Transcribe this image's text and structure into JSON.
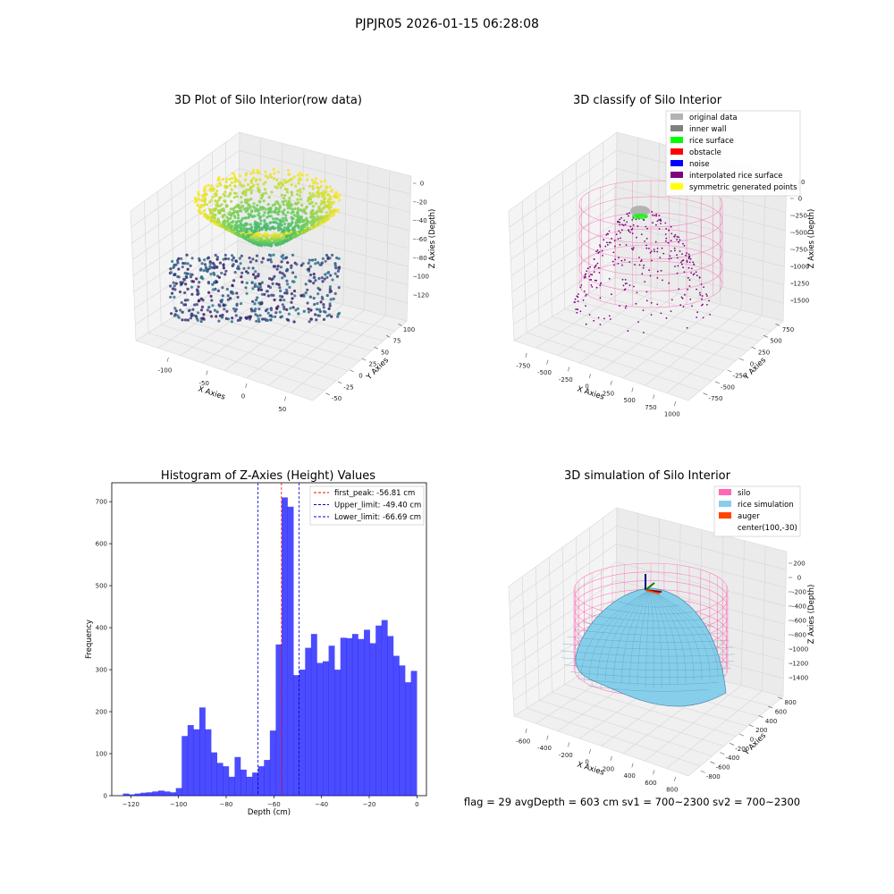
{
  "header": {
    "title": "PJPJR05 2026-01-15 06:28:08"
  },
  "footer": {
    "status": "flag = 29  avgDepth = 603 cm  sv1 = 700~2300  sv2 = 700~2300"
  },
  "chart_data": [
    {
      "type": "scatter3d",
      "title": "3D Plot of Silo Interior(row data)",
      "xlabel": "X Axies",
      "ylabel": "Y Axies",
      "zlabel": "Z Axies (Depth)",
      "x_ticks": [
        "-100",
        "-50",
        "0",
        "50"
      ],
      "y_ticks": [
        "-50",
        "-25",
        "0",
        "25",
        "50",
        "75",
        "100"
      ],
      "z_ticks": [
        "0",
        "-20",
        "-40",
        "-60",
        "-80",
        "-100",
        "-120"
      ],
      "xlim": [
        -130,
        75
      ],
      "ylim": [
        -60,
        110
      ],
      "zlim": [
        -130,
        5
      ],
      "colormap": "viridis",
      "grid": true
    },
    {
      "type": "scatter3d",
      "title": "3D classify of Silo Interior",
      "xlabel": "X Axies",
      "ylabel": "Y Axies",
      "zlabel": "Z Axies (Depth)",
      "x_ticks": [
        "-750",
        "-500",
        "-250",
        "0",
        "250",
        "500",
        "750",
        "1000"
      ],
      "y_ticks": [
        "-750",
        "-500",
        "-250",
        "0",
        "250",
        "500",
        "750"
      ],
      "z_ticks": [
        "0",
        "-250",
        "-500",
        "-750",
        "-1000",
        "-1250",
        "-1500"
      ],
      "z_top_tick": "10",
      "legend_position": "top-right",
      "legend": [
        {
          "label": "original data",
          "color": "#b3b3b3"
        },
        {
          "label": "inner wall",
          "color": "#808080"
        },
        {
          "label": "rice surface",
          "color": "#00ff00"
        },
        {
          "label": "obstacle",
          "color": "#ff0000"
        },
        {
          "label": "noise",
          "color": "#0000ff"
        },
        {
          "label": "interpolated rice surface",
          "color": "#800080"
        },
        {
          "label": "symmetric generated points",
          "color": "#ffff00"
        }
      ],
      "wall_color": "#f06eb0",
      "grid": true
    },
    {
      "type": "bar",
      "title": "Histogram of Z-Axies (Height) Values",
      "xlabel": "Depth (cm)",
      "ylabel": "Frequency",
      "xlim": [
        -128,
        4
      ],
      "ylim": [
        0,
        745
      ],
      "x_ticks": [
        -120,
        -100,
        -80,
        -60,
        -40,
        -20,
        0
      ],
      "y_ticks": [
        0,
        100,
        200,
        300,
        400,
        500,
        600,
        700
      ],
      "bin_start": -123.3,
      "bin_width": 2.465,
      "values": [
        5,
        3,
        5,
        7,
        8,
        10,
        12,
        10,
        8,
        18,
        142,
        168,
        158,
        210,
        158,
        103,
        78,
        70,
        45,
        92,
        62,
        45,
        55,
        70,
        85,
        155,
        360,
        710,
        688,
        287,
        300,
        352,
        385,
        316,
        320,
        357,
        300,
        376,
        375,
        385,
        373,
        395,
        363,
        405,
        418,
        380,
        333,
        310,
        270,
        297
      ],
      "bar_color": "#0000ff",
      "legend_position": "top-right",
      "lines": [
        {
          "label": "first_peak: -56.81 cm",
          "x": -56.81,
          "color": "#ff0000"
        },
        {
          "label": "Upper_limit: -49.40 cm",
          "x": -49.4,
          "color": "#0000cc"
        },
        {
          "label": "Lower_limit: -66.69 cm",
          "x": -66.69,
          "color": "#0000cc"
        }
      ],
      "grid": false
    },
    {
      "type": "surface3d",
      "title": "3D simulation of Silo Interior",
      "xlabel": "X Axies",
      "ylabel": "Y Axies",
      "zlabel": "Z Axies (Depth)",
      "x_ticks": [
        "-600",
        "-400",
        "-200",
        "0",
        "200",
        "400",
        "600",
        "800"
      ],
      "y_ticks": [
        "-800",
        "-600",
        "-400",
        "-200",
        "0",
        "200",
        "400",
        "600",
        "800"
      ],
      "z_ticks": [
        "200",
        "0",
        "-200",
        "-400",
        "-600",
        "-800",
        "-1000",
        "-1200",
        "-1400"
      ],
      "legend_position": "top-right",
      "legend": [
        {
          "label": "silo",
          "color": "#ff69b4"
        },
        {
          "label": "rice simulation",
          "color": "#87ceeb"
        },
        {
          "label": "auger",
          "color": "#ff4500"
        },
        {
          "label": "center(100,-30)",
          "color": ""
        }
      ],
      "grid": true
    }
  ]
}
